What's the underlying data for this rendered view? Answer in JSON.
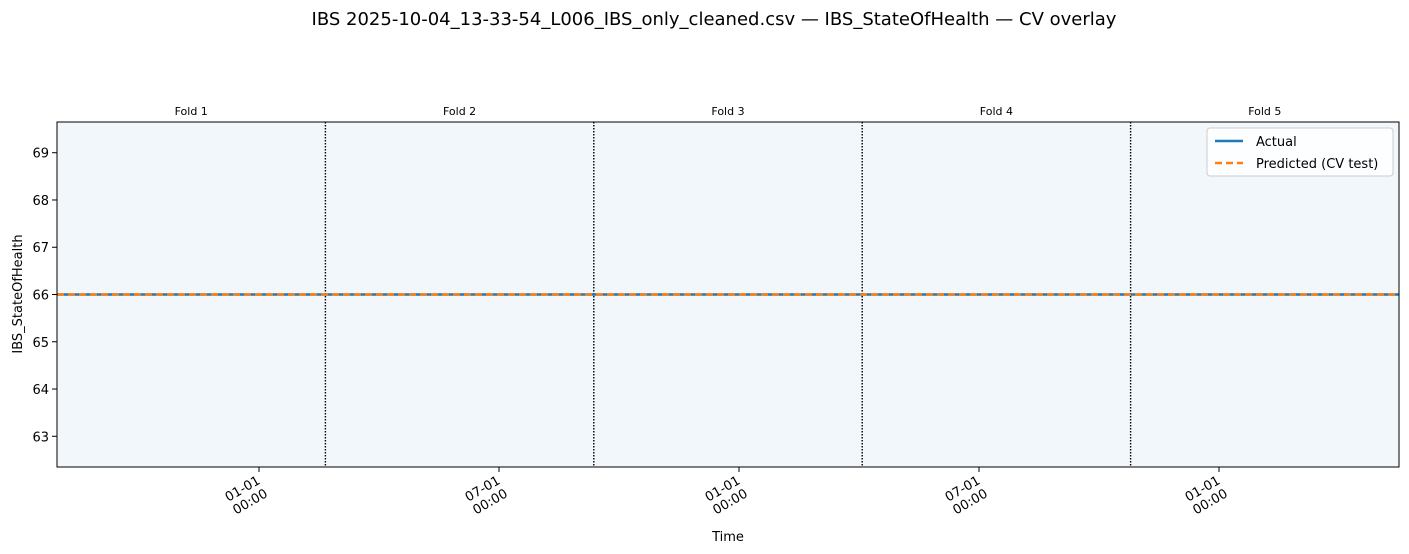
{
  "chart_data": {
    "type": "line",
    "title": "IBS 2025-10-04_13-33-54_L006_IBS_only_cleaned.csv — IBS_StateOfHealth — CV overlay",
    "xlabel": "Time",
    "ylabel": "IBS_StateOfHealth",
    "ylim": [
      62.35,
      69.65
    ],
    "yticks": [
      63,
      64,
      65,
      66,
      67,
      68,
      69
    ],
    "x_tick_labels": [
      {
        "line1": "01-01",
        "line2": "00:00"
      },
      {
        "line1": "07-01",
        "line2": "00:00"
      },
      {
        "line1": "01-01",
        "line2": "00:00"
      },
      {
        "line1": "07-01",
        "line2": "00:00"
      },
      {
        "line1": "01-01",
        "line2": "00:00"
      }
    ],
    "folds": [
      "Fold 1",
      "Fold 2",
      "Fold 3",
      "Fold 4",
      "Fold 5"
    ],
    "series": [
      {
        "name": "Actual",
        "color": "#1f77b4",
        "style": "solid",
        "values": [
          66,
          66,
          66,
          66,
          66
        ]
      },
      {
        "name": "Predicted (CV test)",
        "color": "#ff7f0e",
        "style": "dashed",
        "values": [
          66,
          66,
          66,
          66,
          66
        ]
      }
    ],
    "legend_position": "top-right",
    "grid": false,
    "background_color": "#f2f7fb"
  }
}
